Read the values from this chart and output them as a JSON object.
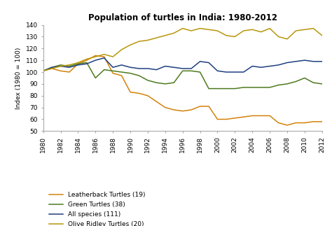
{
  "title": "Population of turtles in India: 1980-2012",
  "ylabel": "Index (1980 = 100)",
  "ylim": [
    50,
    140
  ],
  "yticks": [
    50,
    60,
    70,
    80,
    90,
    100,
    110,
    120,
    130,
    140
  ],
  "years": [
    1980,
    1981,
    1982,
    1983,
    1984,
    1985,
    1986,
    1987,
    1988,
    1989,
    1990,
    1991,
    1992,
    1993,
    1994,
    1995,
    1996,
    1997,
    1998,
    1999,
    2000,
    2001,
    2002,
    2003,
    2004,
    2005,
    2006,
    2007,
    2008,
    2009,
    2010,
    2011,
    2012
  ],
  "leatherback": [
    101,
    103,
    101,
    100,
    107,
    110,
    114,
    113,
    99,
    97,
    83,
    82,
    80,
    75,
    70,
    68,
    67,
    68,
    71,
    71,
    60,
    60,
    61,
    62,
    63,
    63,
    63,
    57,
    55,
    57,
    57,
    58,
    58
  ],
  "green": [
    101,
    104,
    106,
    105,
    107,
    108,
    95,
    102,
    101,
    100,
    99,
    97,
    93,
    91,
    90,
    91,
    101,
    101,
    100,
    86,
    86,
    86,
    86,
    87,
    87,
    87,
    87,
    89,
    90,
    92,
    95,
    91,
    90
  ],
  "all_species": [
    101,
    104,
    105,
    104,
    106,
    107,
    110,
    112,
    104,
    106,
    104,
    103,
    103,
    102,
    105,
    104,
    103,
    103,
    109,
    108,
    101,
    100,
    100,
    100,
    105,
    104,
    105,
    106,
    108,
    109,
    110,
    109,
    109
  ],
  "olive_ridley": [
    101,
    103,
    105,
    106,
    108,
    111,
    113,
    115,
    113,
    119,
    123,
    126,
    127,
    129,
    131,
    133,
    137,
    135,
    137,
    136,
    135,
    131,
    130,
    135,
    136,
    134,
    137,
    130,
    128,
    135,
    136,
    137,
    131
  ],
  "colors": {
    "leatherback": "#D4820A",
    "green": "#4E7A1E",
    "all_species": "#1F3F80",
    "olive_ridley": "#B8960A"
  },
  "legend_labels": [
    "Leatherback Turtles (19)",
    "Green Turtles (38)",
    "All species (111)",
    "Olive Ridley Turtles (20)"
  ],
  "background_color": "#ffffff",
  "xtick_years": [
    1980,
    1982,
    1984,
    1986,
    1988,
    1990,
    1992,
    1994,
    1996,
    1998,
    2000,
    2002,
    2004,
    2006,
    2008,
    2010,
    2012
  ]
}
